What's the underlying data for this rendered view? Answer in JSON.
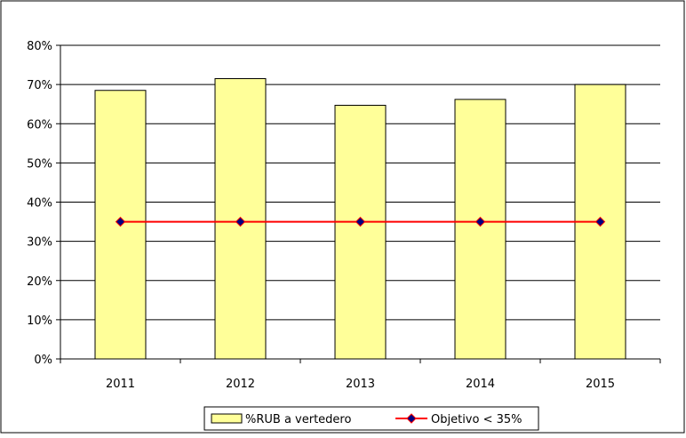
{
  "chart_data": {
    "type": "bar",
    "categories": [
      "2011",
      "2012",
      "2013",
      "2014",
      "2015"
    ],
    "series": [
      {
        "name": "%RUB a vertedero",
        "type": "bar",
        "values": [
          68.5,
          71.5,
          64.7,
          66.2,
          70.0
        ],
        "color": "#FFFF99"
      },
      {
        "name": "Objetivo < 35%",
        "type": "line",
        "values": [
          35,
          35,
          35,
          35,
          35
        ],
        "color": "#FF0000",
        "marker_color": "#000080"
      }
    ],
    "title": "",
    "xlabel": "",
    "ylabel": "",
    "ylim": [
      0,
      80
    ],
    "y_ticks": [
      "0%",
      "10%",
      "20%",
      "30%",
      "40%",
      "50%",
      "60%",
      "70%",
      "80%"
    ],
    "grid": true,
    "legend_position": "bottom"
  }
}
